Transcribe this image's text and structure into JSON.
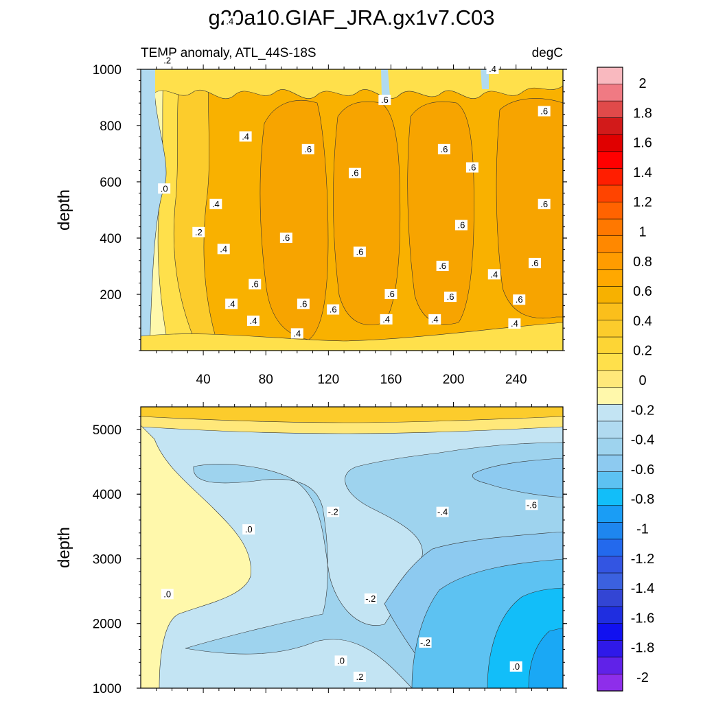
{
  "title": "g20a10.GIAF_JRA.gx1v7.C03",
  "subtitle_left": "TEMP anomaly, ATL_44S-18S",
  "subtitle_right": "degC",
  "chart_data": [
    {
      "type": "heatmap",
      "panel": "upper",
      "variable": "TEMP anomaly",
      "region": "ATL_44S-18S",
      "units": "degC",
      "ylabel": "depth",
      "xlabel": "",
      "xlim": [
        0,
        270
      ],
      "ylim": [
        1000,
        0
      ],
      "xticks": [
        "40",
        "80",
        "120",
        "160",
        "200",
        "240"
      ],
      "xtick_values": [
        40,
        80,
        120,
        160,
        200,
        240
      ],
      "yticks": [
        "200",
        "400",
        "600",
        "800",
        "1000"
      ],
      "ytick_values": [
        200,
        400,
        600,
        800,
        1000
      ],
      "contour_labels": [
        {
          "text": ".4",
          "x": 100,
          "y": 60
        },
        {
          "text": ".4",
          "x": 72,
          "y": 105
        },
        {
          "text": ".6",
          "x": 123,
          "y": 145
        },
        {
          "text": ".4",
          "x": 157,
          "y": 110
        },
        {
          "text": ".4",
          "x": 188,
          "y": 110
        },
        {
          "text": ".4",
          "x": 239,
          "y": 95
        },
        {
          "text": ".6",
          "x": 104,
          "y": 165
        },
        {
          "text": ".4",
          "x": 58,
          "y": 165
        },
        {
          "text": ".6",
          "x": 73,
          "y": 235
        },
        {
          "text": ".6",
          "x": 160,
          "y": 200
        },
        {
          "text": ".6",
          "x": 198,
          "y": 190
        },
        {
          "text": ".6",
          "x": 242,
          "y": 180
        },
        {
          "text": ".4",
          "x": 226,
          "y": 270
        },
        {
          "text": ".6",
          "x": 252,
          "y": 310
        },
        {
          "text": ".6",
          "x": 193,
          "y": 300
        },
        {
          "text": ".6",
          "x": 140,
          "y": 350
        },
        {
          "text": ".4",
          "x": 53,
          "y": 360
        },
        {
          "text": ".2",
          "x": 37,
          "y": 420
        },
        {
          "text": ".6",
          "x": 93,
          "y": 400
        },
        {
          "text": ".6",
          "x": 205,
          "y": 445
        },
        {
          "text": ".4",
          "x": 48,
          "y": 520
        },
        {
          "text": ".6",
          "x": 258,
          "y": 520
        },
        {
          "text": ".0",
          "x": 15,
          "y": 575
        },
        {
          "text": ".6",
          "x": 137,
          "y": 630
        },
        {
          "text": ".6",
          "x": 212,
          "y": 650
        },
        {
          "text": ".6",
          "x": 107,
          "y": 715
        },
        {
          "text": ".6",
          "x": 194,
          "y": 715
        },
        {
          "text": ".4",
          "x": 67,
          "y": 760
        },
        {
          "text": ".6",
          "x": 156,
          "y": 890
        },
        {
          "text": ".6",
          "x": 258,
          "y": 850
        },
        {
          "text": ".2",
          "x": 17,
          "y": 1030
        },
        {
          "text": ".4",
          "x": 225,
          "y": 1000
        },
        {
          "text": ".4",
          "x": 57,
          "y": 1170
        }
      ]
    },
    {
      "type": "heatmap",
      "panel": "lower",
      "variable": "TEMP anomaly",
      "region": "ATL_44S-18S",
      "units": "degC",
      "ylabel": "depth",
      "xlabel": "",
      "xlim": [
        0,
        270
      ],
      "ylim": [
        5350,
        1000
      ],
      "xticks": [],
      "yticks": [
        "1000",
        "2000",
        "3000",
        "4000",
        "5000"
      ],
      "ytick_values": [
        1000,
        2000,
        3000,
        4000,
        5000
      ],
      "contour_labels": [
        {
          "text": ".2",
          "x": 140,
          "y": 1170
        },
        {
          "text": ".0",
          "x": 128,
          "y": 1420
        },
        {
          "text": ".0",
          "x": 240,
          "y": 1330
        },
        {
          "text": "-.2",
          "x": 182,
          "y": 1700
        },
        {
          "text": ".0",
          "x": 17,
          "y": 2450
        },
        {
          "text": "-.2",
          "x": 147,
          "y": 2380
        },
        {
          "text": ".0",
          "x": 69,
          "y": 3450
        },
        {
          "text": "-.2",
          "x": 123,
          "y": 3720
        },
        {
          "text": "-.4",
          "x": 193,
          "y": 3720
        },
        {
          "text": "-.6",
          "x": 250,
          "y": 3830
        }
      ]
    }
  ],
  "colorbar": {
    "labels": [
      "2",
      "1.8",
      "1.6",
      "1.4",
      "1.2",
      "1",
      "0.8",
      "0.6",
      "0.4",
      "0.2",
      "0",
      "-0.2",
      "-0.4",
      "-0.6",
      "-0.8",
      "-1",
      "-1.2",
      "-1.4",
      "-1.6",
      "-1.8",
      "-2"
    ],
    "colors": [
      "#f9b9bf",
      "#f07a83",
      "#e04a4a",
      "#d21a1a",
      "#e00000",
      "#ff0000",
      "#ff1e00",
      "#ff4400",
      "#ff6300",
      "#ff7800",
      "#ff8800",
      "#ff9c00",
      "#ffa800",
      "#f7b100",
      "#fbbf1b",
      "#fccc2c",
      "#fdd535",
      "#ffe04b",
      "#ffe87a",
      "#fff8ab",
      "#c3e4f3",
      "#b0daf0",
      "#9ed3ee",
      "#8dcaf0",
      "#5dc2f2",
      "#12bef9",
      "#1a9df5",
      "#1e86ef",
      "#2369ed",
      "#3355e2",
      "#3b61e0",
      "#3345d4",
      "#1f2ee0",
      "#1111f0",
      "#2f19e9",
      "#6022e8",
      "#8e2eea"
    ]
  }
}
